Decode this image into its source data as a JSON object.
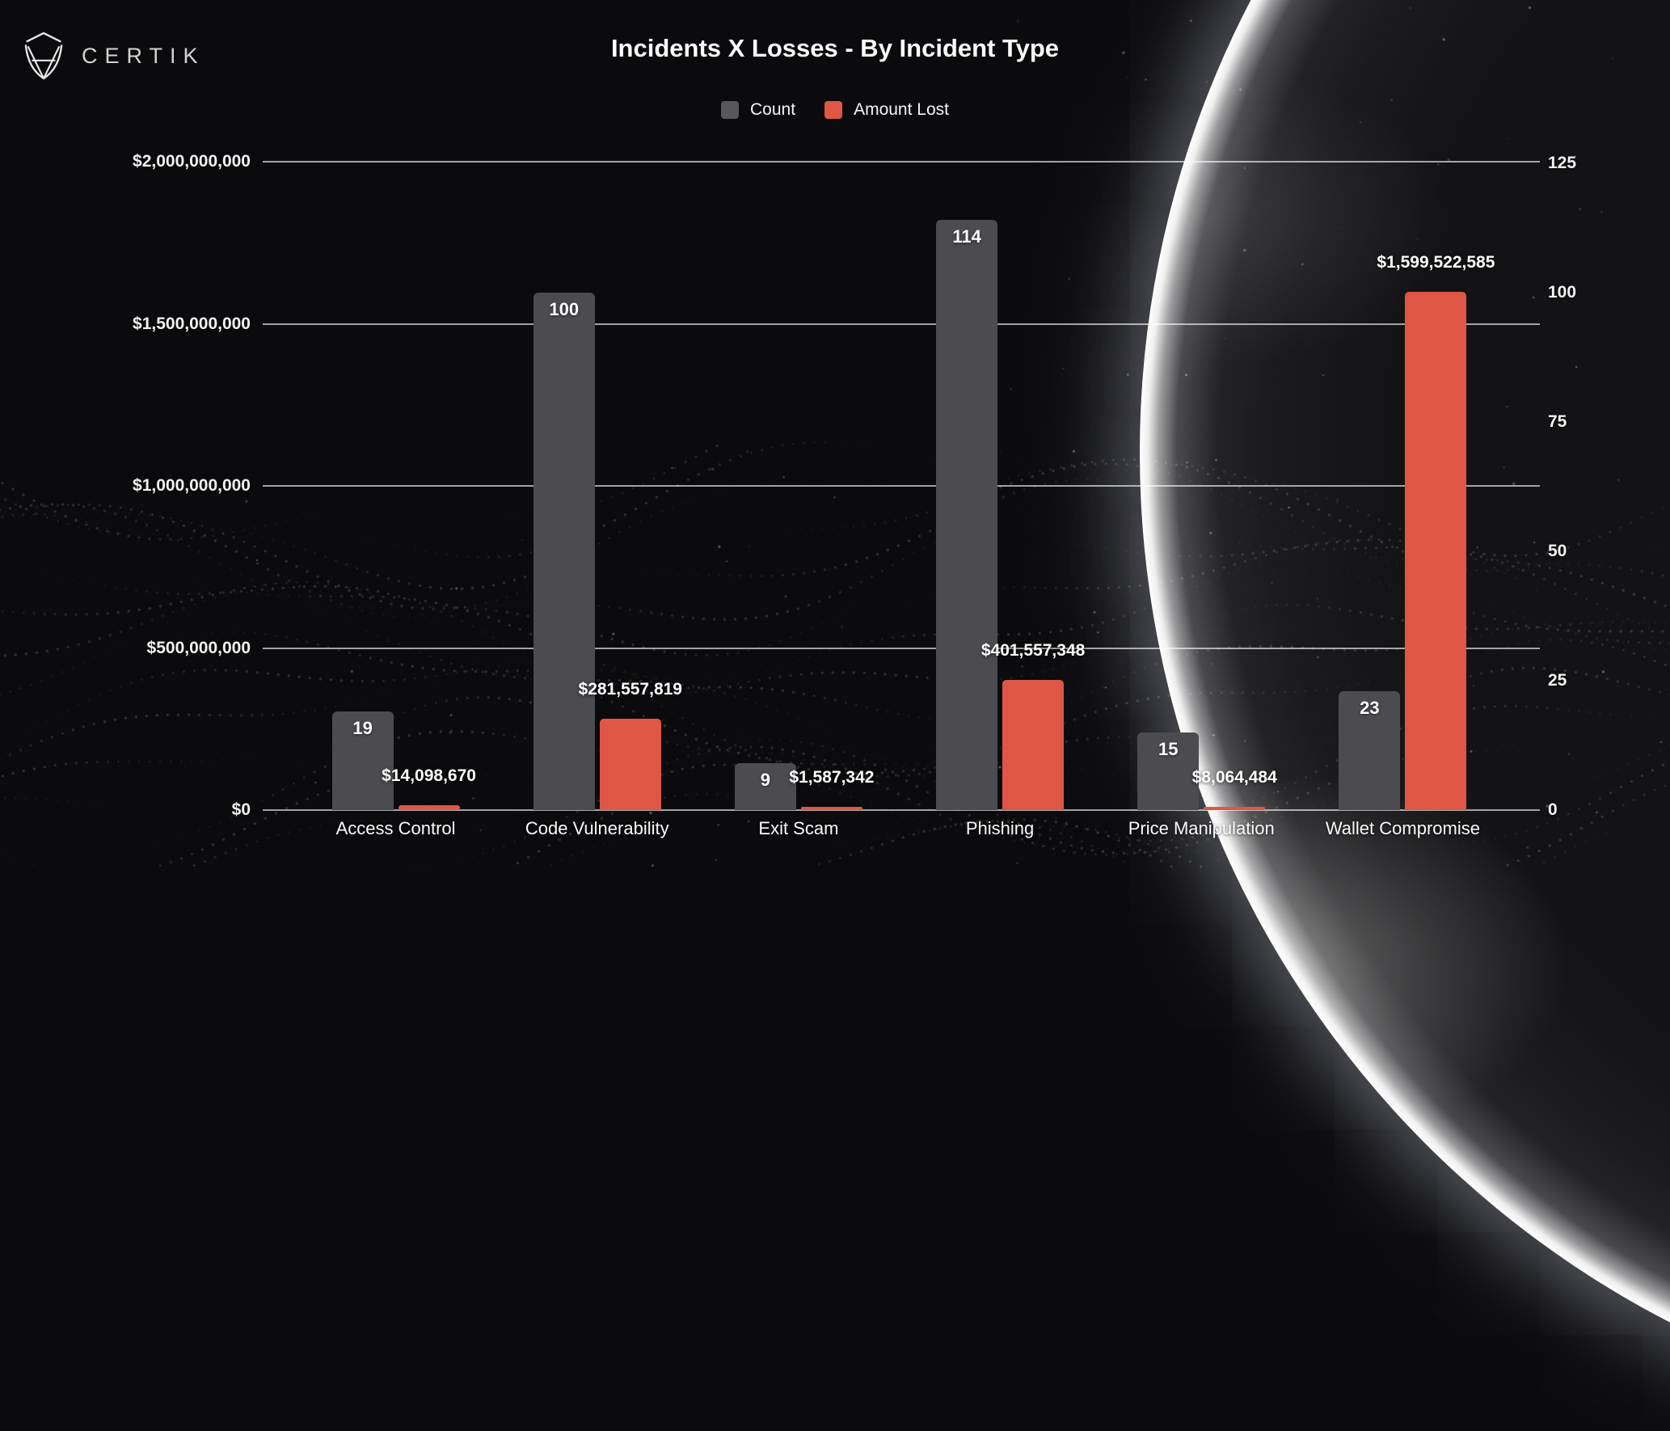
{
  "brand": {
    "logo_text": "CERTIK"
  },
  "header": {
    "title": "Incidents X Losses - By Incident Type"
  },
  "legend": [
    {
      "label": "Count",
      "color": "#57575c"
    },
    {
      "label": "Amount Lost",
      "color": "#df5645"
    }
  ],
  "colors": {
    "count_bar": "#4c4c50",
    "amount_bar": "#df5645",
    "background": "#0b0b0d",
    "gridline": "rgba(255,255,255,0.62)"
  },
  "chart_data": {
    "type": "bar",
    "title": "Incidents X Losses - By Incident Type",
    "categories": [
      "Access Control",
      "Code Vulnerability",
      "Exit Scam",
      "Phishing",
      "Price Manipulation",
      "Wallet Compromise"
    ],
    "series": [
      {
        "name": "Count",
        "axis": "right",
        "color": "#4c4c50",
        "values": [
          19,
          100,
          9,
          114,
          15,
          23
        ],
        "labels": [
          "19",
          "100",
          "9",
          "114",
          "15",
          "23"
        ]
      },
      {
        "name": "Amount Lost",
        "axis": "left",
        "color": "#df5645",
        "values": [
          14098670,
          281557819,
          1587342,
          401557348,
          8064484,
          1599522585
        ],
        "labels": [
          "$14,098,670",
          "$281,557,819",
          "$1,587,342",
          "$401,557,348",
          "$8,064,484",
          "$1,599,522,585"
        ]
      }
    ],
    "left_axis": {
      "min": 0,
      "max": 2000000000,
      "ticks": [
        "$2,000,000,000",
        "$1,500,000,000",
        "$1,000,000,000",
        "$500,000,000",
        "$0"
      ]
    },
    "right_axis": {
      "min": 0,
      "max": 125,
      "ticks": [
        "125",
        "100",
        "75",
        "50",
        "25",
        "0"
      ]
    },
    "grid": true,
    "legend_position": "top"
  }
}
